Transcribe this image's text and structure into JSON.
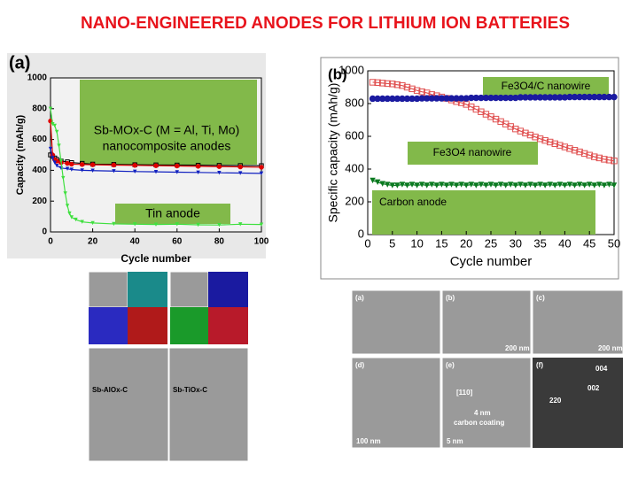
{
  "title": "NANO-ENGINEERED ANODES FOR LITHIUM ION BATTERIES",
  "chart_data": [
    {
      "type": "line",
      "panel": "(a)",
      "xlabel": "Cycle number",
      "ylabel": "Capacity (mAh/g)",
      "xlim": [
        0,
        100
      ],
      "xticks": [
        0,
        20,
        40,
        60,
        80,
        100
      ],
      "ylim": [
        0,
        1000
      ],
      "yticks": [
        0,
        200,
        400,
        600,
        800,
        1000
      ],
      "annotations": [
        "Sb-MOx-C (M = Al, Ti, Mo)",
        "nanocomposite anodes",
        "Tin anode"
      ],
      "series": [
        {
          "color": "#000000",
          "marker": "square",
          "x": [
            0,
            1,
            2,
            3,
            5,
            8,
            10,
            15,
            20,
            30,
            40,
            50,
            60,
            70,
            80,
            90,
            100
          ],
          "values": [
            500,
            490,
            480,
            470,
            460,
            455,
            450,
            445,
            440,
            438,
            436,
            435,
            434,
            433,
            432,
            431,
            430
          ]
        },
        {
          "color": "#e00000",
          "marker": "circle",
          "x": [
            0,
            1,
            2,
            3,
            5,
            8,
            10,
            15,
            20,
            30,
            40,
            50,
            60,
            70,
            80,
            90,
            100
          ],
          "values": [
            720,
            500,
            470,
            460,
            450,
            445,
            440,
            438,
            436,
            434,
            432,
            430,
            428,
            426,
            424,
            422,
            420
          ]
        },
        {
          "color": "#1020c0",
          "marker": "triangle",
          "x": [
            0,
            1,
            2,
            3,
            5,
            8,
            10,
            15,
            20,
            30,
            40,
            50,
            60,
            70,
            80,
            90,
            100
          ],
          "values": [
            540,
            480,
            450,
            430,
            415,
            410,
            405,
            400,
            398,
            395,
            392,
            390,
            388,
            386,
            384,
            382,
            380
          ]
        },
        {
          "color": "#40e040",
          "marker": "triangle",
          "x": [
            0,
            1,
            2,
            3,
            4,
            5,
            6,
            7,
            8,
            9,
            10,
            12,
            15,
            20,
            30,
            40,
            50,
            60,
            70,
            80,
            90,
            100
          ],
          "values": [
            800,
            700,
            690,
            650,
            560,
            460,
            350,
            250,
            170,
            120,
            95,
            80,
            65,
            58,
            52,
            50,
            48,
            50,
            46,
            45,
            50,
            48
          ]
        }
      ]
    },
    {
      "type": "line",
      "panel": "(b)",
      "xlabel": "Cycle number",
      "ylabel": "Specific capacity (mAh/g)",
      "xlim": [
        0,
        50
      ],
      "xticks": [
        0,
        5,
        10,
        15,
        20,
        25,
        30,
        35,
        40,
        45,
        50
      ],
      "ylim": [
        0,
        1000
      ],
      "yticks": [
        0,
        200,
        400,
        600,
        800,
        1000
      ],
      "annotations": [
        "Fe3O4/C nanowire",
        "Fe3O4 nanowire",
        "Carbon anode"
      ],
      "x": [
        1,
        2,
        3,
        4,
        5,
        6,
        7,
        8,
        9,
        10,
        11,
        12,
        13,
        14,
        15,
        16,
        17,
        18,
        19,
        20,
        21,
        22,
        23,
        24,
        25,
        26,
        27,
        28,
        29,
        30,
        31,
        32,
        33,
        34,
        35,
        36,
        37,
        38,
        39,
        40,
        41,
        42,
        43,
        44,
        45,
        46,
        47,
        48,
        49,
        50
      ],
      "series": [
        {
          "color": "#e05050",
          "marker": "square",
          "values": [
            930,
            928,
            925,
            922,
            920,
            915,
            910,
            900,
            890,
            880,
            872,
            865,
            855,
            848,
            840,
            832,
            822,
            812,
            805,
            795,
            780,
            765,
            750,
            735,
            720,
            705,
            690,
            675,
            660,
            645,
            632,
            620,
            608,
            596,
            585,
            575,
            565,
            555,
            545,
            535,
            525,
            515,
            505,
            495,
            485,
            475,
            468,
            460,
            455,
            450
          ]
        },
        {
          "color": "#1a1aa0",
          "marker": "circle",
          "values": [
            830,
            830,
            830,
            830,
            830,
            830,
            830,
            830,
            830,
            830,
            832,
            832,
            832,
            832,
            832,
            832,
            832,
            832,
            832,
            832,
            835,
            835,
            835,
            835,
            835,
            835,
            835,
            835,
            835,
            835,
            838,
            838,
            838,
            838,
            838,
            838,
            838,
            838,
            838,
            838,
            840,
            840,
            840,
            840,
            840,
            840,
            840,
            840,
            840,
            840
          ]
        },
        {
          "color": "#0a7a20",
          "marker": "triangle",
          "values": [
            330,
            320,
            310,
            305,
            300,
            300,
            305,
            300,
            305,
            300,
            305,
            300,
            305,
            300,
            305,
            300,
            305,
            300,
            305,
            300,
            305,
            300,
            305,
            300,
            305,
            300,
            305,
            300,
            305,
            300,
            305,
            300,
            305,
            300,
            305,
            300,
            305,
            300,
            305,
            300,
            305,
            300,
            305,
            300,
            305,
            300,
            305,
            300,
            305,
            300
          ]
        }
      ]
    }
  ],
  "images": {
    "left": [
      "Sb-AlOx-C",
      "Sb-TiOx-C"
    ],
    "right": [
      "(a)",
      "(b)",
      "(c)",
      "(d)",
      "(e)",
      "(f)",
      "200 nm",
      "200 nm",
      "100 nm",
      "5 nm",
      "[110]",
      "4 nm",
      "carbon coating",
      "004",
      "002",
      "220"
    ]
  }
}
